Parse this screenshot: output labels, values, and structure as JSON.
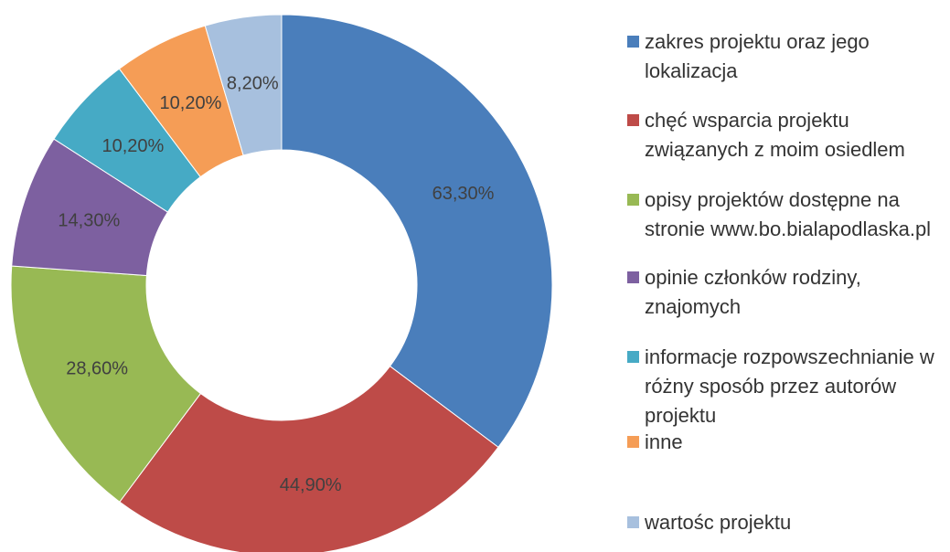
{
  "chart_data": {
    "type": "donut",
    "categories": [
      "zakres projektu oraz jego lokalizacja",
      "chęć wsparcia projektu związanych z moim osiedlem",
      "opisy projektów dostępne na stronie www.bo.bialapodlaska.pl",
      "opinie członków rodziny, znajomych",
      " informacje rozpowszechnianie w różny sposób przez autorów projektu",
      "inne",
      "wartośc projektu"
    ],
    "values": [
      63.3,
      44.9,
      28.6,
      14.3,
      10.2,
      10.2,
      8.2
    ],
    "value_labels": [
      "63,30%",
      "44,90%",
      "28,60%",
      "14,30%",
      "10,20%",
      "10,20%",
      "8,20%"
    ],
    "colors": [
      "#4a7ebb",
      "#be4b48",
      "#98b954",
      "#7d60a0",
      "#46aac5",
      "#f59d56",
      "#a7c0de"
    ]
  }
}
